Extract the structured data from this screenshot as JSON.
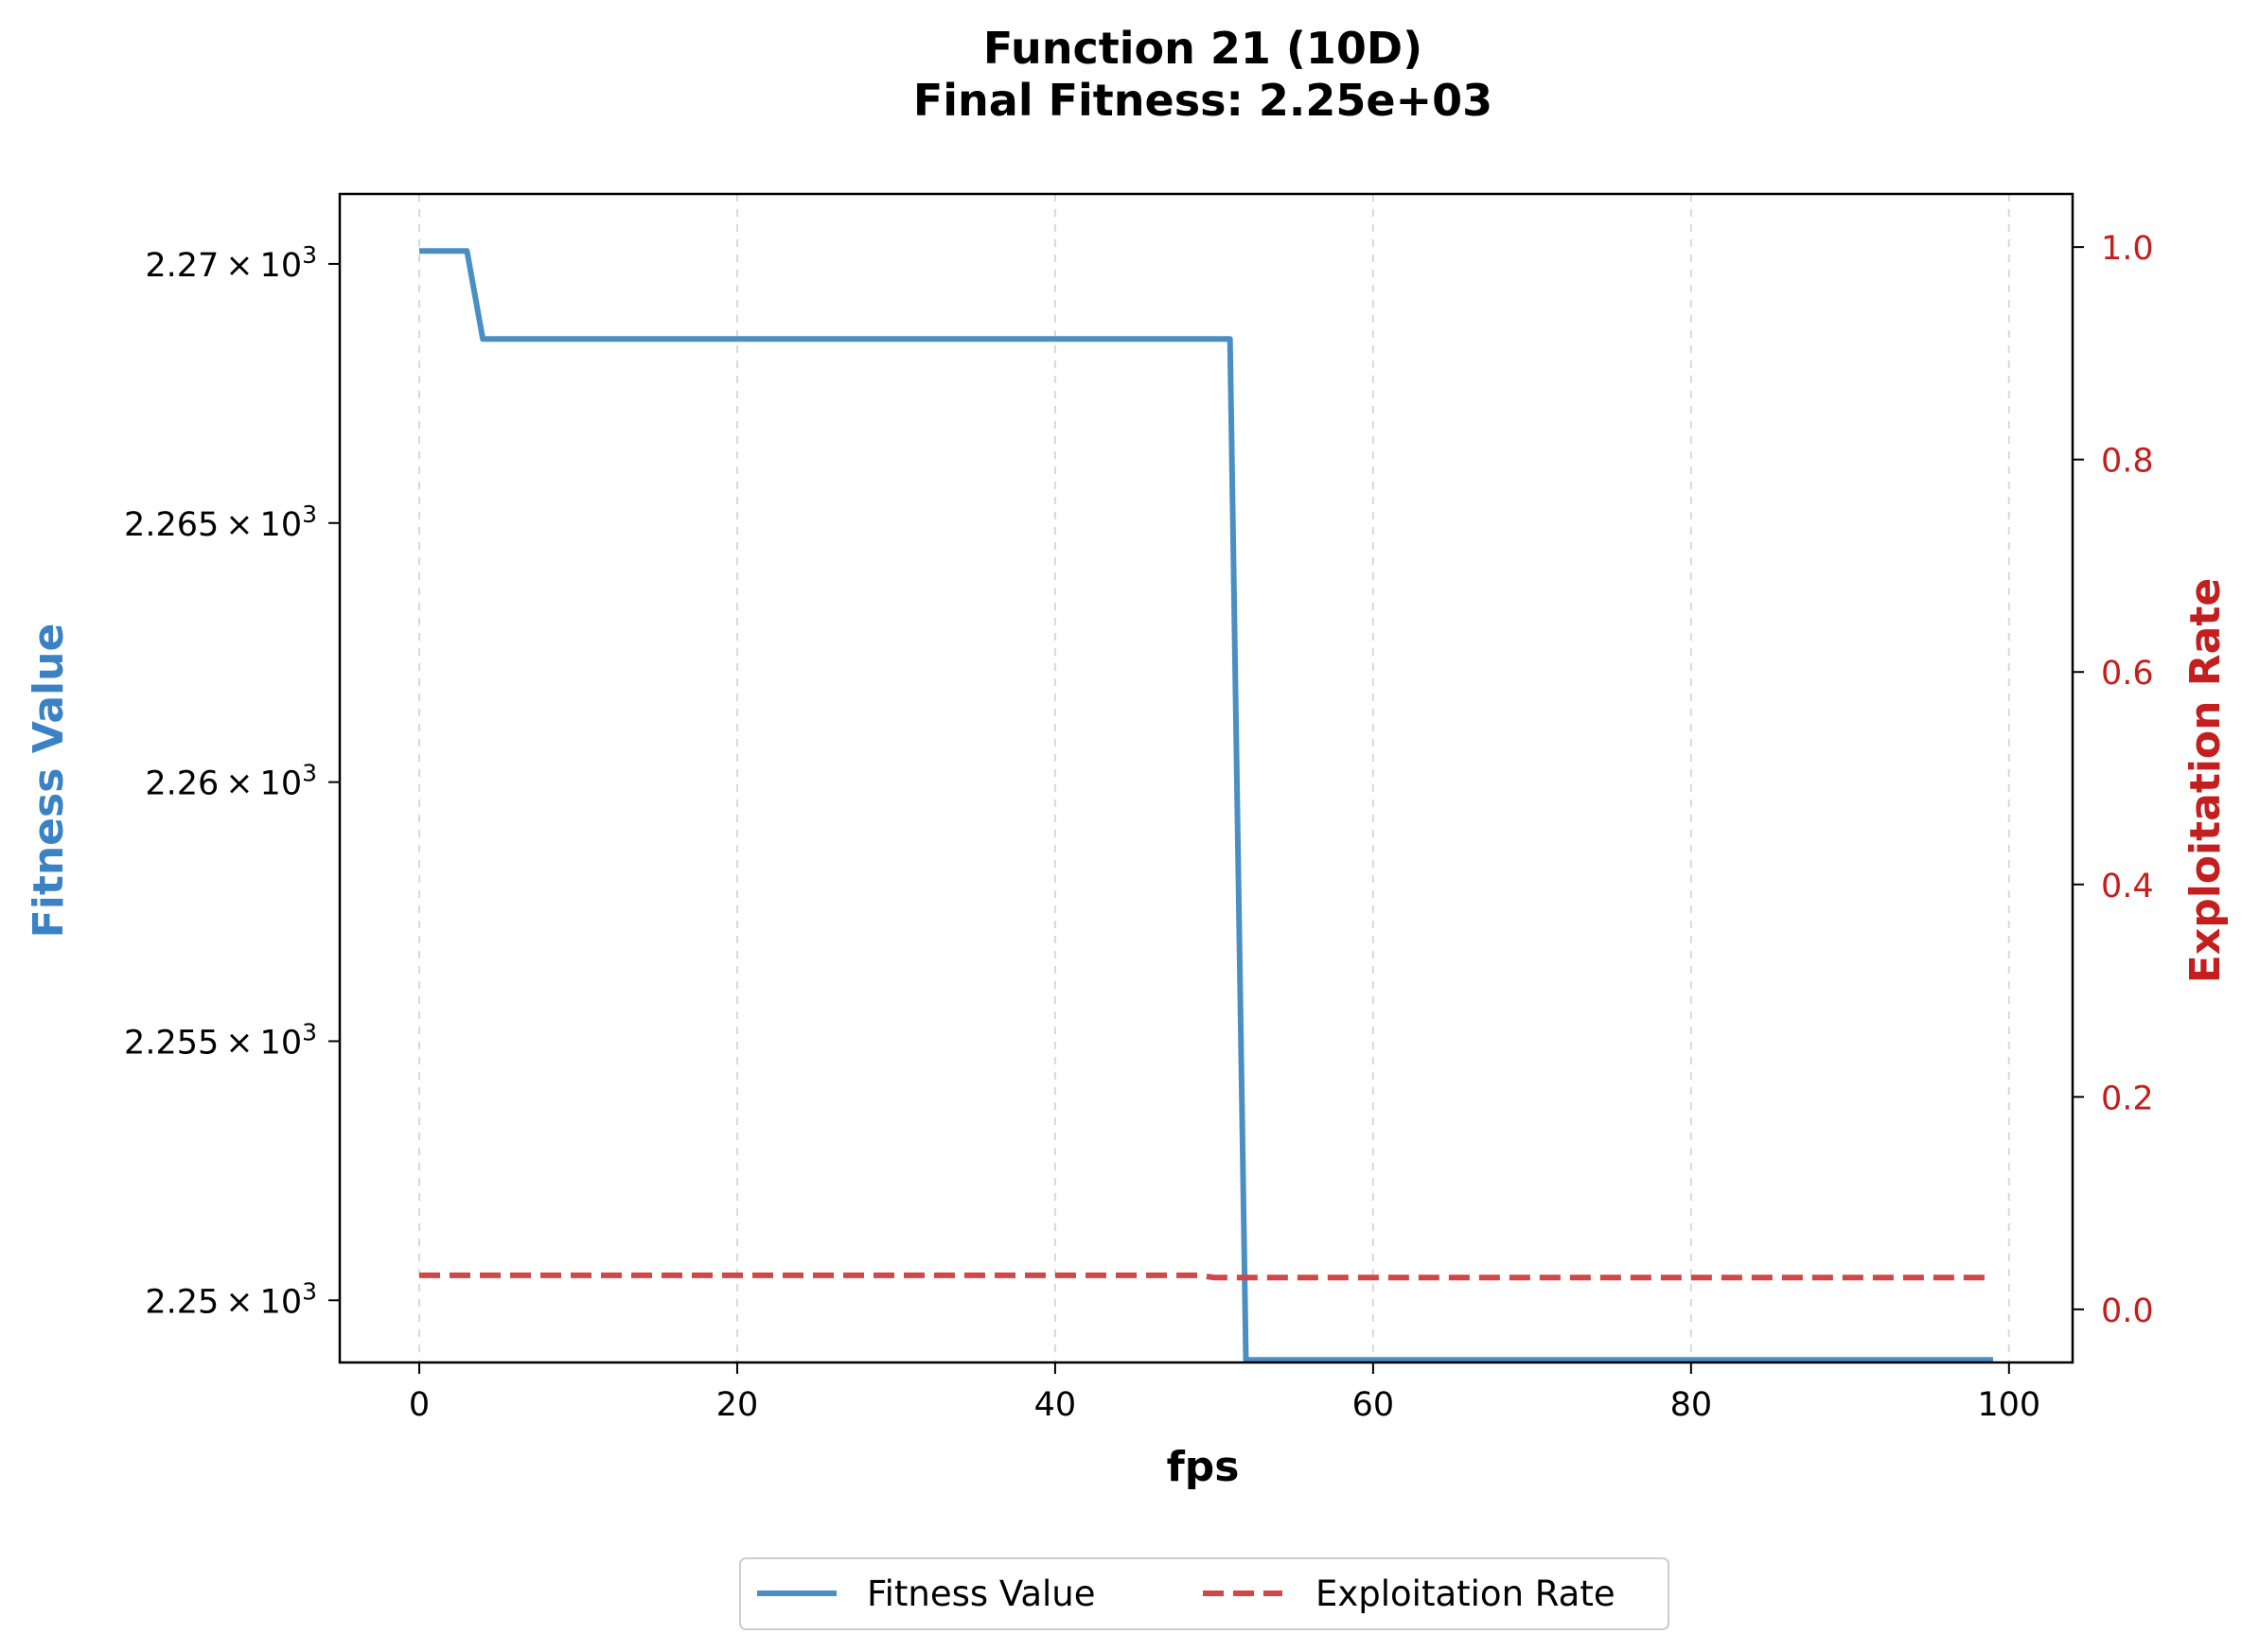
{
  "chart_data": {
    "type": "line",
    "title": "Function 21 (10D)",
    "subtitle": "Final Fitness: 2.25e+03",
    "xlabel": "fps",
    "ylabel_left": "Fitness Value",
    "ylabel_right": "Exploitation Rate",
    "xlim": [
      -5,
      104
    ],
    "ylim_left": [
      2248.8,
      2271.35
    ],
    "ylim_right": [
      -0.05,
      1.05
    ],
    "x_ticks": [
      0,
      20,
      40,
      60,
      80,
      100
    ],
    "x_tick_labels": [
      "0",
      "20",
      "40",
      "60",
      "80",
      "100"
    ],
    "y_left_ticks": [
      2250,
      2255,
      2260,
      2265,
      2270
    ],
    "y_left_tick_labels": [
      {
        "mantissa": "2.25",
        "exponent": "3"
      },
      {
        "mantissa": "2.255",
        "exponent": "3"
      },
      {
        "mantissa": "2.26",
        "exponent": "3"
      },
      {
        "mantissa": "2.265",
        "exponent": "3"
      },
      {
        "mantissa": "2.27",
        "exponent": "3"
      }
    ],
    "y_right_ticks": [
      0.0,
      0.2,
      0.4,
      0.6,
      0.8,
      1.0
    ],
    "y_right_tick_labels": [
      "0.0",
      "0.2",
      "0.4",
      "0.6",
      "0.8",
      "1.0"
    ],
    "grid": "x dashed",
    "legend_position": "bottom-center",
    "series": [
      {
        "name": "Fitness Value",
        "axis": "left",
        "color": "#4a8fc4",
        "style": "solid",
        "x": [
          0,
          3,
          4,
          51,
          52,
          99
        ],
        "values": [
          2270.25,
          2270.25,
          2268.55,
          2268.55,
          2248.85,
          2248.85
        ]
      },
      {
        "name": "Exploitation Rate",
        "axis": "right",
        "color": "#cf4747",
        "style": "dashed",
        "x": [
          0,
          49,
          50,
          99
        ],
        "values": [
          0.032,
          0.032,
          0.03,
          0.03
        ]
      }
    ]
  }
}
